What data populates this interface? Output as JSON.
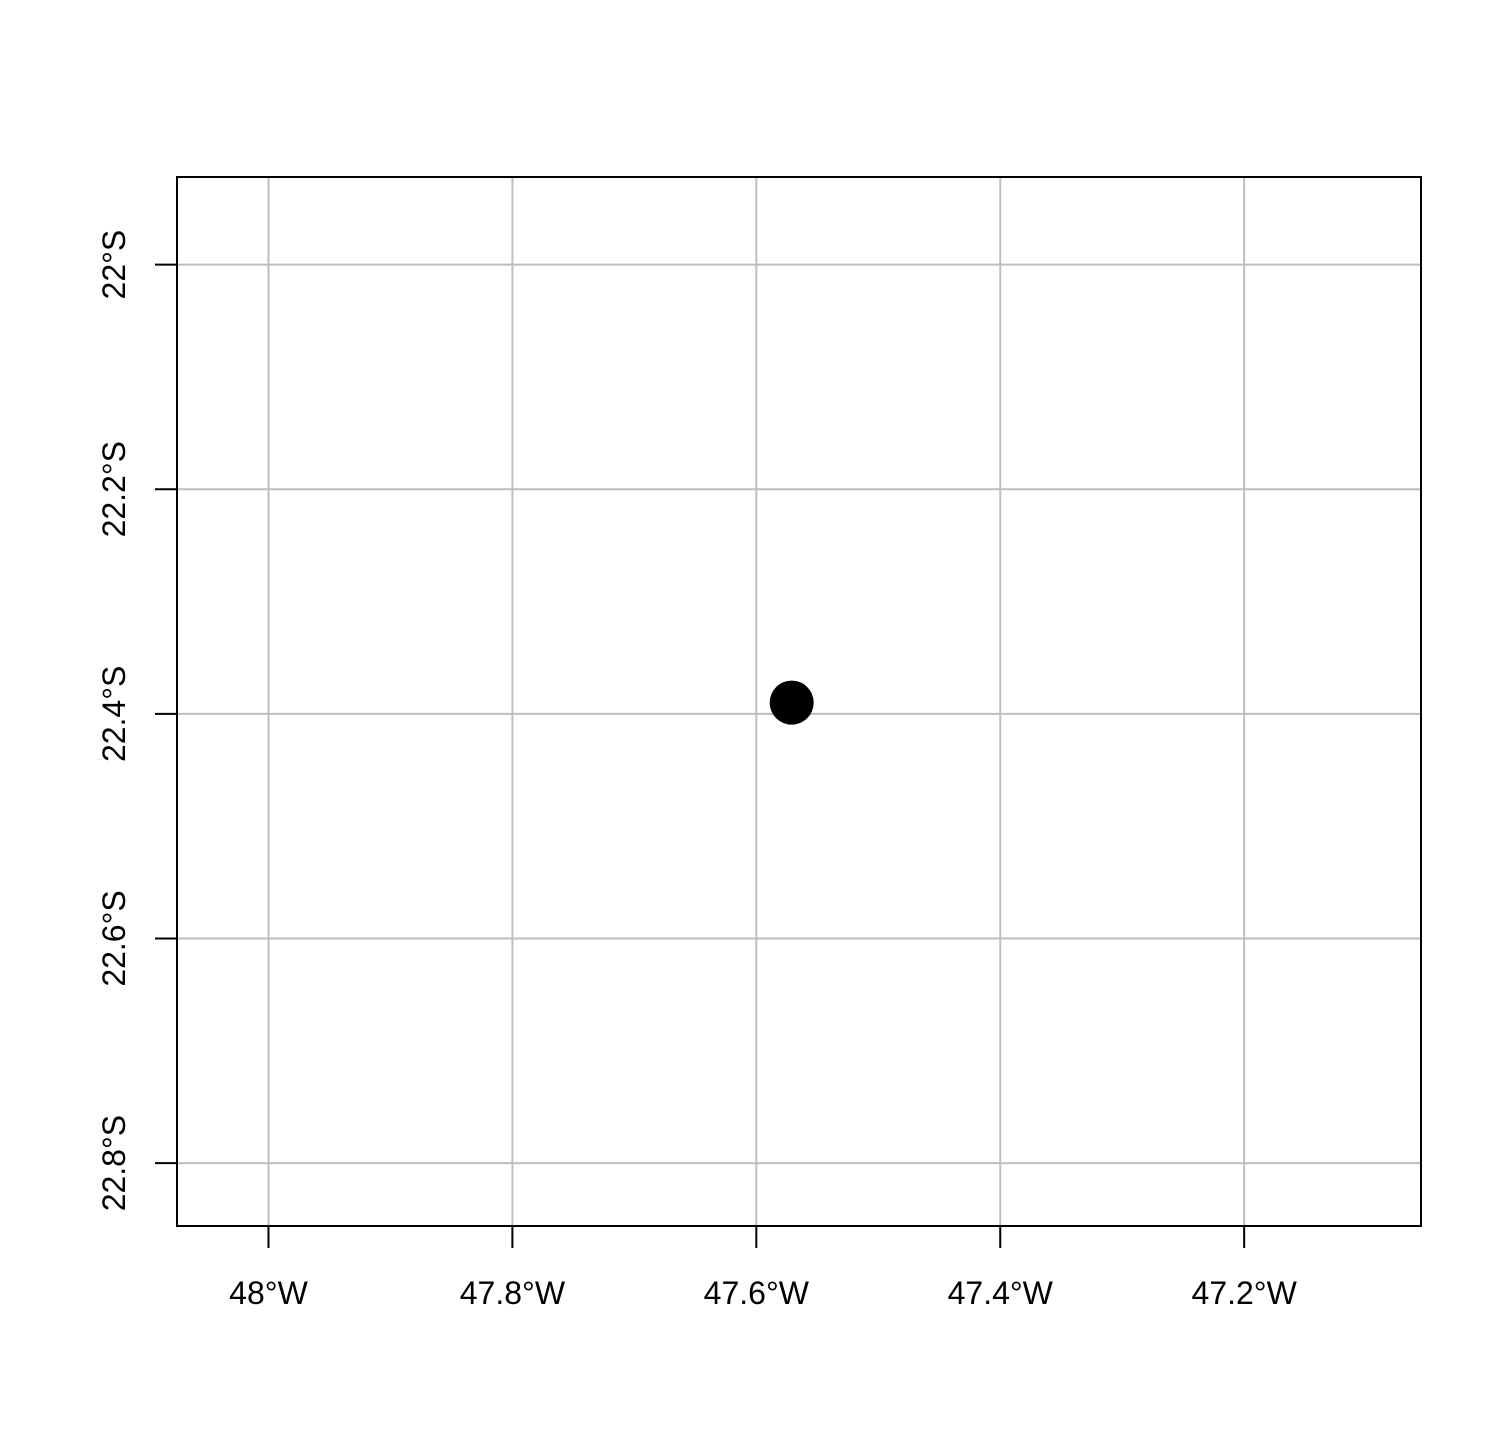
{
  "chart_data": {
    "type": "scatter",
    "title": "",
    "xlabel": "",
    "ylabel": "",
    "xlim": [
      -48.075,
      -47.055
    ],
    "ylim": [
      -22.856,
      -21.922
    ],
    "grid": true,
    "x_ticks": [
      {
        "value": -48.0,
        "label": "48°W"
      },
      {
        "value": -47.8,
        "label": "47.8°W"
      },
      {
        "value": -47.6,
        "label": "47.6°W"
      },
      {
        "value": -47.4,
        "label": "47.4°W"
      },
      {
        "value": -47.2,
        "label": "47.2°W"
      }
    ],
    "y_ticks": [
      {
        "value": -22.0,
        "label": "22°S"
      },
      {
        "value": -22.2,
        "label": "22.2°S"
      },
      {
        "value": -22.4,
        "label": "22.4°S"
      },
      {
        "value": -22.6,
        "label": "22.6°S"
      },
      {
        "value": -22.8,
        "label": "22.8°S"
      }
    ],
    "points": [
      {
        "x": -47.571,
        "y": -22.39
      }
    ],
    "colors": {
      "point": "#000000",
      "grid": "#bebebe",
      "frame": "#000000"
    }
  }
}
